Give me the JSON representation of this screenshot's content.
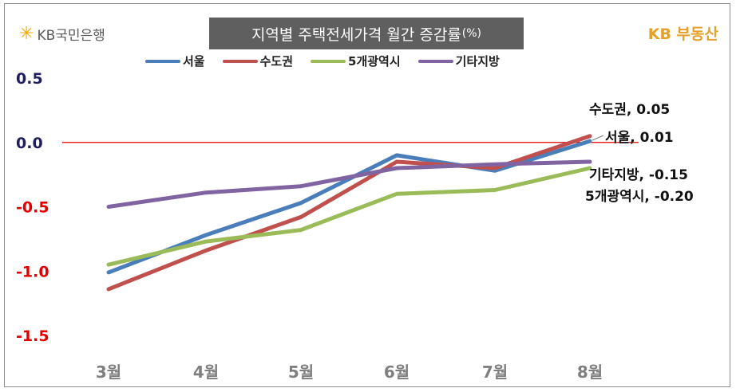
{
  "header": {
    "left_brand_text": "KB국민은행",
    "left_brand_icon": "kb-star-icon",
    "right_brand_text": "KB 부동산",
    "title": "지역별 주택전세가격 월간 증감률",
    "title_unit": "(%)"
  },
  "colors": {
    "seoul": "#4a7ebb",
    "sudogwon": "#c0504d",
    "metro5": "#9bbb59",
    "other": "#8064a2",
    "zero_line": "#e00000",
    "negative_tick": "#e00000",
    "positive_tick": "#1f1f5f",
    "title_bg": "#5f5f5f",
    "brand_gold": "#e3a12b"
  },
  "chart_data": {
    "type": "line",
    "title": "지역별 주택전세가격 월간 증감률(%)",
    "xlabel": "",
    "ylabel": "",
    "categories": [
      "3월",
      "4월",
      "5월",
      "6월",
      "7월",
      "8월"
    ],
    "ylim": [
      -1.5,
      0.5
    ],
    "yticks": [
      "0.5",
      "0.0",
      "-0.5",
      "-1.0",
      "-1.5"
    ],
    "grid": false,
    "legend_position": "top",
    "series": [
      {
        "name": "서울",
        "values": [
          -1.01,
          -0.72,
          -0.47,
          -0.1,
          -0.22,
          0.01
        ]
      },
      {
        "name": "수도권",
        "values": [
          -1.14,
          -0.84,
          -0.58,
          -0.15,
          -0.2,
          0.05
        ]
      },
      {
        "name": "5개광역시",
        "values": [
          -0.95,
          -0.77,
          -0.68,
          -0.4,
          -0.37,
          -0.2
        ]
      },
      {
        "name": "기타지방",
        "values": [
          -0.5,
          -0.39,
          -0.34,
          -0.2,
          -0.17,
          -0.15
        ]
      }
    ],
    "annotations": [
      {
        "text": "수도권, 0.05"
      },
      {
        "text": "서울, 0.01"
      },
      {
        "text": "기타지방, -0.15"
      },
      {
        "text": "5개광역시, -0.20"
      }
    ]
  }
}
